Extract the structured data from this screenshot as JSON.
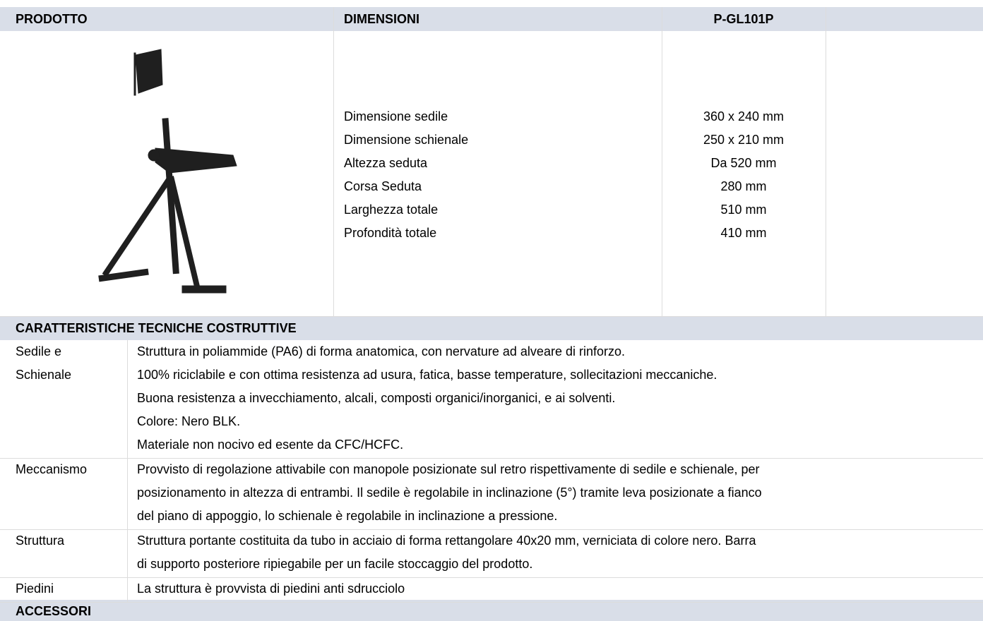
{
  "header": {
    "product": "PRODOTTO",
    "dimensions": "DIMENSIONI",
    "code": "P-GL101P"
  },
  "dimensions": [
    {
      "label": "Dimensione sedile",
      "value": "360 x 240 mm"
    },
    {
      "label": "Dimensione schienale",
      "value": "250 x 210 mm"
    },
    {
      "label": "Altezza seduta",
      "value": "Da 520 mm"
    },
    {
      "label": "Corsa Seduta",
      "value": "280 mm"
    },
    {
      "label": "Larghezza totale",
      "value": "510 mm"
    },
    {
      "label": "Profondità totale",
      "value": "410 mm"
    }
  ],
  "features": {
    "title": "CARATTERISTICHE TECNICHE COSTRUTTIVE",
    "rows": [
      {
        "label": [
          "Sedile e",
          "Schienale"
        ],
        "lines": [
          "Struttura in poliammide (PA6) di forma anatomica, con nervature ad alveare di rinforzo.",
          "100% riciclabile e con ottima resistenza ad usura, fatica, basse temperature, sollecitazioni meccaniche.",
          "Buona resistenza a invecchiamento, alcali, composti organici/inorganici, e ai solventi.",
          "Colore: Nero BLK.",
          "Materiale non nocivo ed esente da CFC/HCFC."
        ]
      },
      {
        "label": [
          "Meccanismo"
        ],
        "lines": [
          "Provvisto di regolazione attivabile con manopole posizionate sul retro rispettivamente di sedile e schienale, per",
          "posizionamento in altezza di entrambi. Il sedile è regolabile in inclinazione (5°) tramite leva posizionate a fianco",
          "del piano di appoggio, lo schienale è regolabile in inclinazione a pressione."
        ]
      },
      {
        "label": [
          "Struttura"
        ],
        "lines": [
          "Struttura portante costituita da tubo in acciaio di forma rettangolare 40x20 mm, verniciata di colore nero. Barra",
          "di supporto posteriore ripiegabile per un facile stoccaggio del prodotto."
        ]
      },
      {
        "label": [
          "Piedini"
        ],
        "lines": [
          "La struttura è provvista di piedini anti sdrucciolo"
        ]
      }
    ]
  },
  "accessories": {
    "title": "ACCESSORI"
  }
}
